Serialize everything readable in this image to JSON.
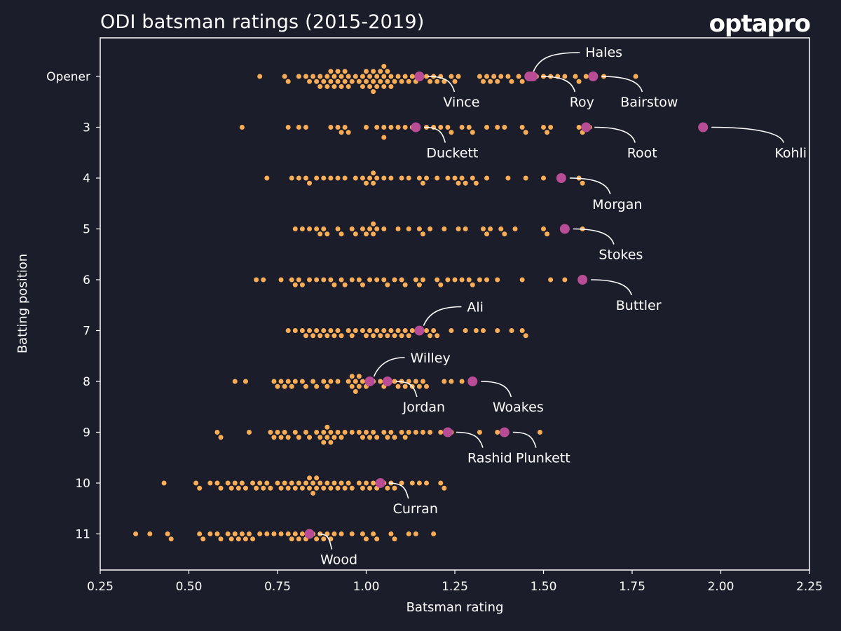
{
  "header": {
    "title": "ODI batsman ratings (2015-2019)",
    "logo_text": "optapro"
  },
  "colors": {
    "background": "#1b1d2a",
    "player_dot": "#f9ad57",
    "highlight_dot": "#b84d96",
    "axis": "#ffffff"
  },
  "chart_data": {
    "type": "scatter",
    "subtype": "beeswarm",
    "title": "ODI batsman ratings (2015-2019)",
    "xlabel": "Batsman rating",
    "ylabel": "Batting position",
    "xlim": [
      0.25,
      2.25
    ],
    "xticks": [
      "0.25",
      "0.50",
      "0.75",
      "1.00",
      "1.25",
      "1.50",
      "1.75",
      "2.00",
      "2.25"
    ],
    "xtick_values": [
      0.25,
      0.5,
      0.75,
      1.0,
      1.25,
      1.5,
      1.75,
      2.0,
      2.25
    ],
    "categories": [
      "Opener",
      "3",
      "4",
      "5",
      "6",
      "7",
      "8",
      "9",
      "10",
      "11"
    ],
    "grid": false,
    "series": [
      {
        "name": "Opener",
        "values": [
          0.7,
          0.77,
          0.78,
          0.81,
          0.83,
          0.84,
          0.85,
          0.86,
          0.87,
          0.87,
          0.88,
          0.89,
          0.89,
          0.9,
          0.9,
          0.91,
          0.91,
          0.92,
          0.92,
          0.93,
          0.93,
          0.94,
          0.94,
          0.95,
          0.95,
          0.96,
          0.97,
          0.98,
          0.99,
          0.99,
          1.0,
          1.0,
          1.01,
          1.01,
          1.02,
          1.02,
          1.02,
          1.03,
          1.03,
          1.04,
          1.04,
          1.05,
          1.05,
          1.05,
          1.06,
          1.06,
          1.07,
          1.07,
          1.08,
          1.09,
          1.1,
          1.11,
          1.12,
          1.13,
          1.14,
          1.17,
          1.18,
          1.19,
          1.2,
          1.21,
          1.22,
          1.24,
          1.25,
          1.26,
          1.32,
          1.33,
          1.34,
          1.35,
          1.36,
          1.37,
          1.38,
          1.4,
          1.41,
          1.43,
          1.44,
          1.48,
          1.5,
          1.52,
          1.54,
          1.56,
          1.59,
          1.6,
          1.62,
          1.67,
          1.76
        ]
      },
      {
        "name": "3",
        "values": [
          0.65,
          0.78,
          0.81,
          0.83,
          0.9,
          0.92,
          0.93,
          0.94,
          0.95,
          1.0,
          1.03,
          1.05,
          1.05,
          1.07,
          1.09,
          1.11,
          1.13,
          1.17,
          1.19,
          1.21,
          1.23,
          1.24,
          1.27,
          1.29,
          1.3,
          1.34,
          1.37,
          1.39,
          1.44,
          1.45,
          1.5,
          1.51,
          1.52,
          1.6,
          1.61,
          1.63
        ]
      },
      {
        "name": "4",
        "values": [
          0.72,
          0.79,
          0.81,
          0.83,
          0.84,
          0.86,
          0.88,
          0.9,
          0.92,
          0.94,
          0.97,
          0.99,
          1.0,
          1.01,
          1.02,
          1.02,
          1.03,
          1.05,
          1.07,
          1.1,
          1.12,
          1.15,
          1.16,
          1.17,
          1.2,
          1.23,
          1.25,
          1.26,
          1.27,
          1.28,
          1.3,
          1.31,
          1.34,
          1.4,
          1.45,
          1.5,
          1.6,
          1.61
        ]
      },
      {
        "name": "5",
        "values": [
          0.8,
          0.82,
          0.84,
          0.86,
          0.87,
          0.88,
          0.89,
          0.92,
          0.93,
          0.96,
          0.97,
          0.99,
          1.0,
          1.01,
          1.02,
          1.02,
          1.03,
          1.05,
          1.09,
          1.12,
          1.15,
          1.16,
          1.18,
          1.22,
          1.26,
          1.28,
          1.33,
          1.34,
          1.35,
          1.38,
          1.39,
          1.42,
          1.5,
          1.51,
          1.61
        ]
      },
      {
        "name": "6",
        "values": [
          0.69,
          0.71,
          0.76,
          0.79,
          0.8,
          0.81,
          0.82,
          0.84,
          0.86,
          0.88,
          0.9,
          0.91,
          0.93,
          0.94,
          0.96,
          0.98,
          0.99,
          1.01,
          1.03,
          1.05,
          1.06,
          1.08,
          1.1,
          1.11,
          1.14,
          1.15,
          1.16,
          1.2,
          1.21,
          1.23,
          1.25,
          1.27,
          1.29,
          1.3,
          1.32,
          1.34,
          1.37,
          1.44,
          1.52,
          1.56
        ]
      },
      {
        "name": "7",
        "values": [
          0.78,
          0.8,
          0.82,
          0.83,
          0.84,
          0.85,
          0.86,
          0.87,
          0.88,
          0.89,
          0.9,
          0.91,
          0.92,
          0.93,
          0.95,
          0.96,
          0.97,
          0.99,
          1.0,
          1.01,
          1.02,
          1.03,
          1.04,
          1.05,
          1.06,
          1.07,
          1.08,
          1.09,
          1.1,
          1.11,
          1.12,
          1.13,
          1.17,
          1.18,
          1.19,
          1.2,
          1.24,
          1.28,
          1.31,
          1.33,
          1.37,
          1.41,
          1.44,
          1.45
        ]
      },
      {
        "name": "8",
        "values": [
          0.63,
          0.66,
          0.74,
          0.75,
          0.76,
          0.77,
          0.78,
          0.79,
          0.8,
          0.82,
          0.83,
          0.85,
          0.86,
          0.88,
          0.89,
          0.9,
          0.92,
          0.95,
          0.96,
          0.96,
          0.97,
          0.97,
          0.98,
          0.98,
          0.99,
          1.0,
          1.02,
          1.04,
          1.05,
          1.06,
          1.08,
          1.09,
          1.1,
          1.11,
          1.12,
          1.13,
          1.14,
          1.15,
          1.16,
          1.17,
          1.22,
          1.24,
          1.27
        ]
      },
      {
        "name": "9",
        "values": [
          0.58,
          0.59,
          0.67,
          0.73,
          0.74,
          0.75,
          0.76,
          0.77,
          0.78,
          0.8,
          0.81,
          0.83,
          0.84,
          0.86,
          0.87,
          0.88,
          0.88,
          0.89,
          0.89,
          0.9,
          0.9,
          0.91,
          0.92,
          0.93,
          0.94,
          0.96,
          0.98,
          0.99,
          1.0,
          1.01,
          1.02,
          1.03,
          1.05,
          1.06,
          1.07,
          1.08,
          1.1,
          1.11,
          1.12,
          1.14,
          1.16,
          1.18,
          1.21,
          1.24,
          1.32,
          1.37,
          1.49
        ]
      },
      {
        "name": "10",
        "values": [
          0.43,
          0.52,
          0.53,
          0.56,
          0.58,
          0.59,
          0.61,
          0.62,
          0.63,
          0.64,
          0.65,
          0.66,
          0.68,
          0.69,
          0.7,
          0.71,
          0.72,
          0.73,
          0.75,
          0.76,
          0.77,
          0.78,
          0.79,
          0.8,
          0.81,
          0.82,
          0.83,
          0.84,
          0.84,
          0.85,
          0.85,
          0.86,
          0.86,
          0.87,
          0.88,
          0.89,
          0.9,
          0.91,
          0.92,
          0.93,
          0.94,
          0.95,
          0.96,
          0.98,
          0.99,
          1.0,
          1.01,
          1.02,
          1.03,
          1.05,
          1.06,
          1.07,
          1.08,
          1.1,
          1.13,
          1.15,
          1.17,
          1.21,
          1.22
        ]
      },
      {
        "name": "11",
        "values": [
          0.35,
          0.39,
          0.44,
          0.45,
          0.53,
          0.54,
          0.56,
          0.58,
          0.59,
          0.61,
          0.62,
          0.63,
          0.64,
          0.65,
          0.66,
          0.67,
          0.68,
          0.7,
          0.72,
          0.74,
          0.76,
          0.78,
          0.79,
          0.8,
          0.81,
          0.82,
          0.83,
          0.85,
          0.86,
          0.87,
          0.88,
          0.89,
          0.9,
          0.91,
          0.93,
          0.96,
          0.99,
          1.0,
          1.02,
          1.03,
          1.07,
          1.08,
          1.12,
          1.14,
          1.19
        ]
      }
    ],
    "highlighted": [
      {
        "name": "Vince",
        "position": "Opener",
        "x": 1.15,
        "label_side": "below"
      },
      {
        "name": "Hales",
        "position": "Opener",
        "x": 1.46,
        "label_side": "above"
      },
      {
        "name": "Roy",
        "position": "Opener",
        "x": 1.47,
        "label_side": "below"
      },
      {
        "name": "Bairstow",
        "position": "Opener",
        "x": 1.64,
        "label_side": "below"
      },
      {
        "name": "Duckett",
        "position": "3",
        "x": 1.14,
        "label_side": "below"
      },
      {
        "name": "Root",
        "position": "3",
        "x": 1.62,
        "label_side": "below"
      },
      {
        "name": "Kohli",
        "position": "3",
        "x": 1.95,
        "label_side": "below"
      },
      {
        "name": "Morgan",
        "position": "4",
        "x": 1.55,
        "label_side": "below"
      },
      {
        "name": "Stokes",
        "position": "5",
        "x": 1.56,
        "label_side": "below"
      },
      {
        "name": "Buttler",
        "position": "6",
        "x": 1.61,
        "label_side": "below"
      },
      {
        "name": "Ali",
        "position": "7",
        "x": 1.15,
        "label_side": "above"
      },
      {
        "name": "Willey",
        "position": "8",
        "x": 1.01,
        "label_side": "above"
      },
      {
        "name": "Jordan",
        "position": "8",
        "x": 1.06,
        "label_side": "below"
      },
      {
        "name": "Woakes",
        "position": "8",
        "x": 1.3,
        "label_side": "below"
      },
      {
        "name": "Rashid",
        "position": "9",
        "x": 1.23,
        "label_side": "below"
      },
      {
        "name": "Plunkett",
        "position": "9",
        "x": 1.39,
        "label_side": "below"
      },
      {
        "name": "Curran",
        "position": "10",
        "x": 1.04,
        "label_side": "below"
      },
      {
        "name": "Wood",
        "position": "11",
        "x": 0.84,
        "label_side": "below"
      }
    ]
  }
}
